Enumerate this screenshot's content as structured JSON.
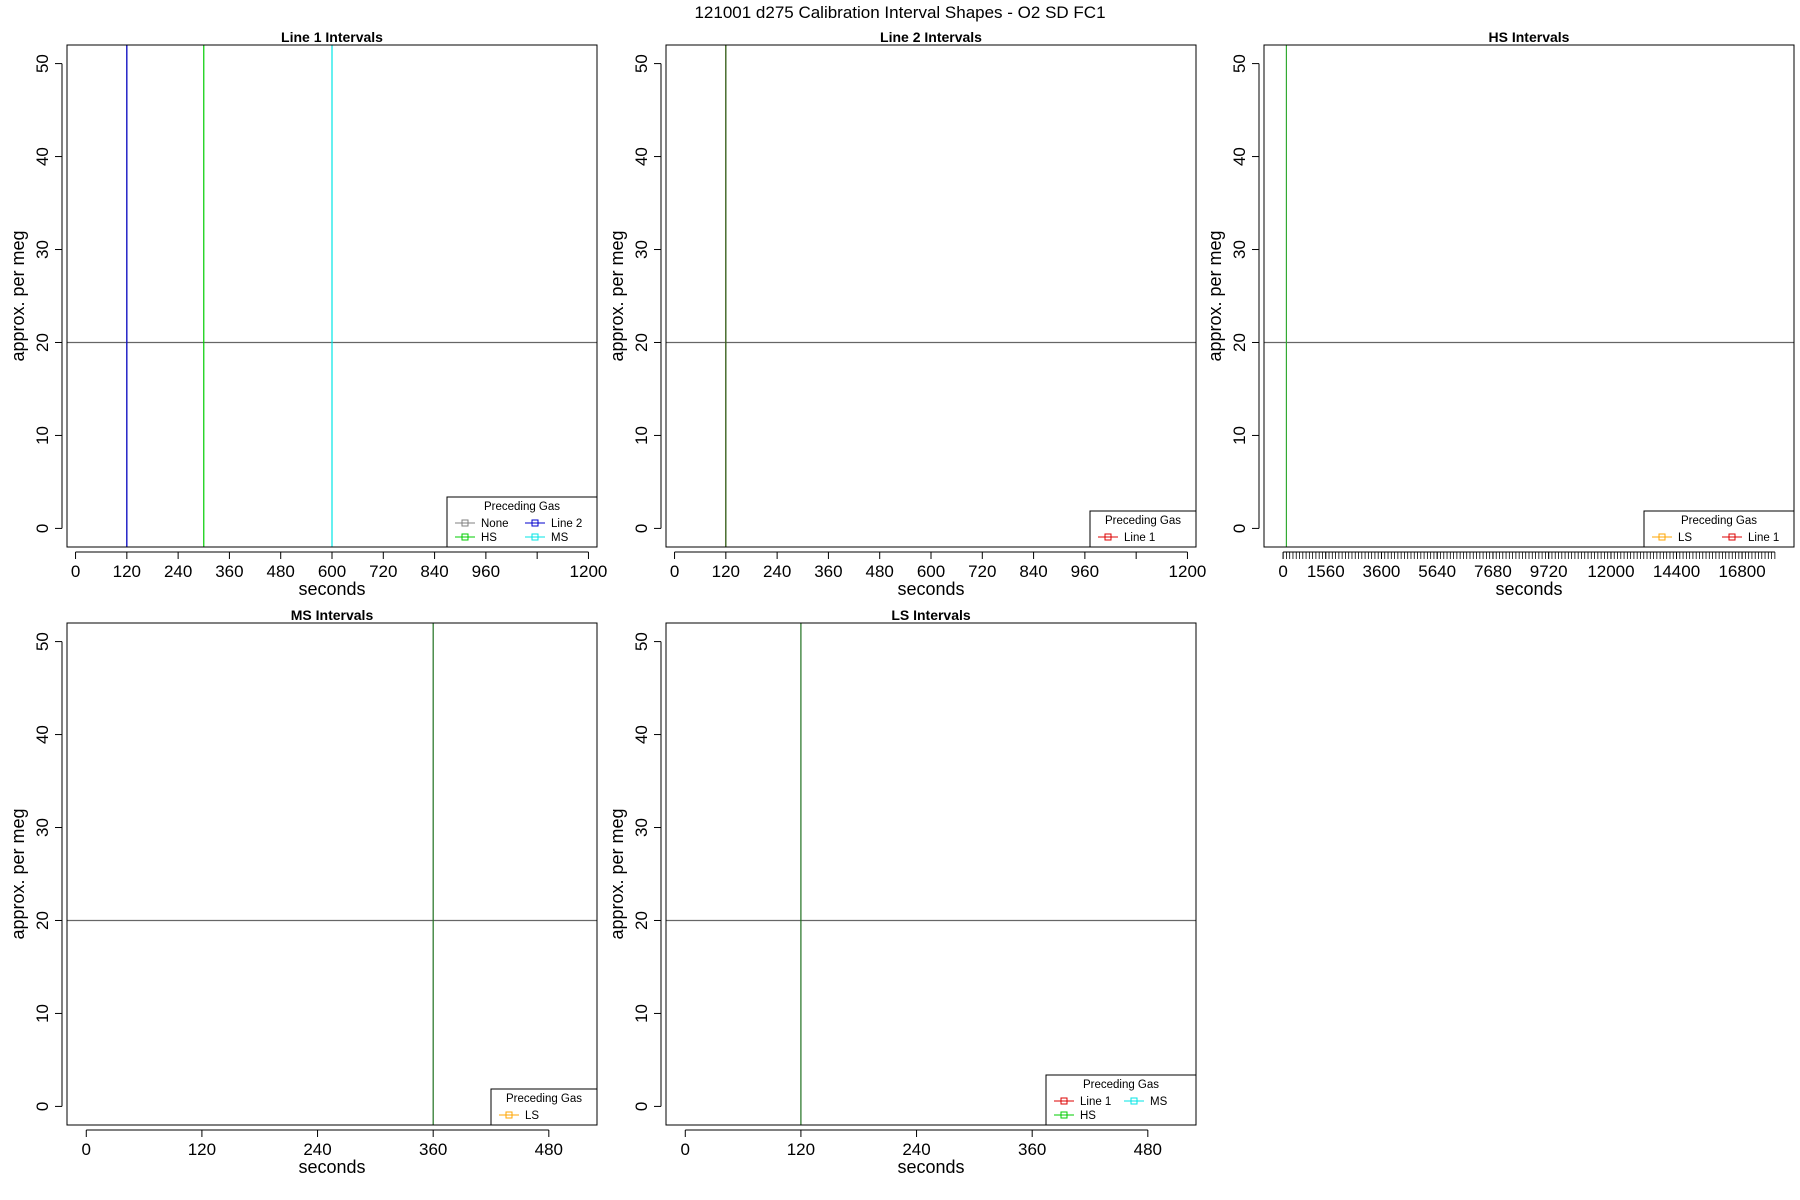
{
  "title": "121001   d275   Calibration Interval Shapes - O2 SD FC1",
  "chart_data": [
    {
      "type": "line",
      "title": "Line 1 Intervals",
      "xlabel": "seconds",
      "ylabel": "approx. per meg",
      "xlim": [
        -20,
        1220
      ],
      "ylim": [
        -2,
        52
      ],
      "xticks": [
        0,
        120,
        240,
        360,
        480,
        600,
        720,
        840,
        960,
        1200
      ],
      "extra_xticks": [
        1080
      ],
      "yticks": [
        0,
        10,
        20,
        30,
        40,
        50
      ],
      "hline": 20,
      "legend": {
        "title": "Preceding Gas",
        "position": "bottom-right",
        "columns": 2,
        "items": [
          {
            "label": "None",
            "color": "#808080"
          },
          {
            "label": "Line 2",
            "color": "#0000cc"
          },
          {
            "label": "HS",
            "color": "#00cc00"
          },
          {
            "label": "MS",
            "color": "#00e5e5"
          }
        ]
      },
      "series": [
        {
          "name": "None",
          "color": "#808080",
          "x": [
            120,
            120
          ],
          "y": [
            -2,
            52
          ]
        },
        {
          "name": "Line 2",
          "color": "#0000cc",
          "x": [
            120,
            120
          ],
          "y": [
            -2,
            52
          ]
        },
        {
          "name": "HS",
          "color": "#00cc00",
          "x": [
            300,
            300
          ],
          "y": [
            -2,
            52
          ]
        },
        {
          "name": "MS",
          "color": "#00e5e5",
          "x": [
            600,
            600
          ],
          "y": [
            -2,
            52
          ]
        }
      ]
    },
    {
      "type": "line",
      "title": "Line 2 Intervals",
      "xlabel": "seconds",
      "ylabel": "approx. per meg",
      "xlim": [
        -20,
        1220
      ],
      "ylim": [
        -2,
        52
      ],
      "xticks": [
        0,
        120,
        240,
        360,
        480,
        600,
        720,
        840,
        960,
        1200
      ],
      "extra_xticks": [
        1080
      ],
      "yticks": [
        0,
        10,
        20,
        30,
        40,
        50
      ],
      "hline": 20,
      "legend": {
        "title": "Preceding Gas",
        "position": "bottom-right",
        "columns": 1,
        "items": [
          {
            "label": "Line 1",
            "color": "#dd0000"
          }
        ]
      },
      "series": [
        {
          "name": "Line 1",
          "color": "#dd0000",
          "x": [
            120,
            120
          ],
          "y": [
            -2,
            52
          ]
        },
        {
          "name": "",
          "color": "#207020",
          "x": [
            120,
            120
          ],
          "y": [
            -2,
            52
          ]
        }
      ]
    },
    {
      "type": "line",
      "title": "HS Intervals",
      "xlabel": "seconds",
      "ylabel": "approx. per meg",
      "xlim": [
        -700,
        18700
      ],
      "ylim": [
        -2,
        52
      ],
      "xticks": [
        0,
        1560,
        3600,
        5640,
        7680,
        9720,
        12000,
        14400,
        16800
      ],
      "minor_xticks": {
        "from": 0,
        "to": 18000,
        "step": 120
      },
      "yticks": [
        0,
        10,
        20,
        30,
        40,
        50
      ],
      "hline": 20,
      "legend": {
        "title": "Preceding Gas",
        "position": "bottom-right",
        "columns": 2,
        "items": [
          {
            "label": "LS",
            "color": "#ffa500"
          },
          {
            "label": "Line 1",
            "color": "#dd0000"
          }
        ]
      },
      "series": [
        {
          "name": "",
          "color": "#33aa33",
          "x": [
            120,
            120
          ],
          "y": [
            -2,
            52
          ]
        }
      ]
    },
    {
      "type": "line",
      "title": "MS Intervals",
      "xlabel": "seconds",
      "ylabel": "approx. per meg",
      "xlim": [
        -20,
        530
      ],
      "ylim": [
        -2,
        52
      ],
      "xticks": [
        0,
        120,
        240,
        360,
        480
      ],
      "yticks": [
        0,
        10,
        20,
        30,
        40,
        50
      ],
      "hline": 20,
      "legend": {
        "title": "Preceding Gas",
        "position": "bottom-right",
        "columns": 1,
        "items": [
          {
            "label": "LS",
            "color": "#ffa500"
          }
        ]
      },
      "series": [
        {
          "name": "",
          "color": "#207020",
          "x": [
            360,
            360
          ],
          "y": [
            -2,
            52
          ]
        }
      ]
    },
    {
      "type": "line",
      "title": "LS Intervals",
      "xlabel": "seconds",
      "ylabel": "approx. per meg",
      "xlim": [
        -20,
        530
      ],
      "ylim": [
        -2,
        52
      ],
      "xticks": [
        0,
        120,
        240,
        360,
        480
      ],
      "yticks": [
        0,
        10,
        20,
        30,
        40,
        50
      ],
      "hline": 20,
      "legend": {
        "title": "Preceding Gas",
        "position": "bottom-right",
        "columns": 2,
        "items": [
          {
            "label": "Line 1",
            "color": "#dd0000"
          },
          {
            "label": "MS",
            "color": "#00e5e5"
          },
          {
            "label": "HS",
            "color": "#00cc00"
          }
        ]
      },
      "series": [
        {
          "name": "",
          "color": "#207020",
          "x": [
            120,
            120
          ],
          "y": [
            -2,
            52
          ]
        }
      ]
    }
  ]
}
